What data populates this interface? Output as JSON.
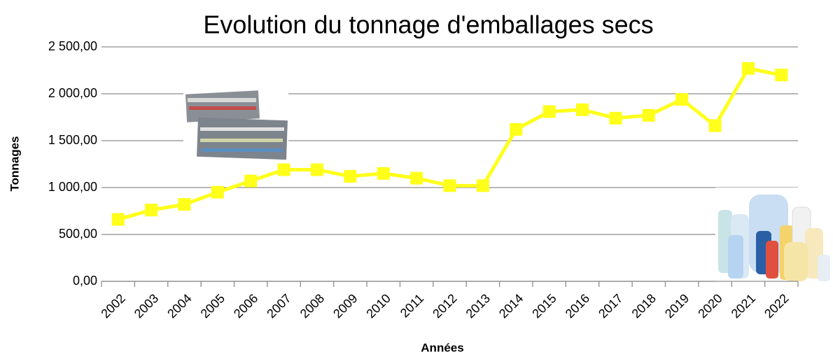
{
  "chart_data": {
    "type": "line",
    "title": "Evolution du tonnage d'emballages secs",
    "y_label": "Tonnages",
    "x_label": "Années",
    "categories": [
      "2002",
      "2003",
      "2004",
      "2005",
      "2006",
      "2007",
      "2008",
      "2009",
      "2010",
      "2011",
      "2012",
      "2013",
      "2014",
      "2015",
      "2016",
      "2017",
      "2018",
      "2019",
      "2020",
      "2021",
      "2022"
    ],
    "series": [
      {
        "name": "Tonnages",
        "color": "#ffff1a",
        "values": [
          660,
          760,
          820,
          950,
          1070,
          1190,
          1190,
          1120,
          1150,
          1100,
          1020,
          1020,
          1620,
          1810,
          1830,
          1740,
          1770,
          1940,
          1660,
          2270,
          2200
        ]
      }
    ],
    "ylim": [
      0,
      2500
    ],
    "yticks": [
      {
        "value": 0,
        "label": "0,00"
      },
      {
        "value": 500,
        "label": "500,00"
      },
      {
        "value": 1000,
        "label": "1 000,00"
      },
      {
        "value": 1500,
        "label": "1 500,00"
      },
      {
        "value": 2000,
        "label": "2 000,00"
      },
      {
        "value": 2500,
        "label": "2 500,00"
      }
    ],
    "grid": true
  }
}
